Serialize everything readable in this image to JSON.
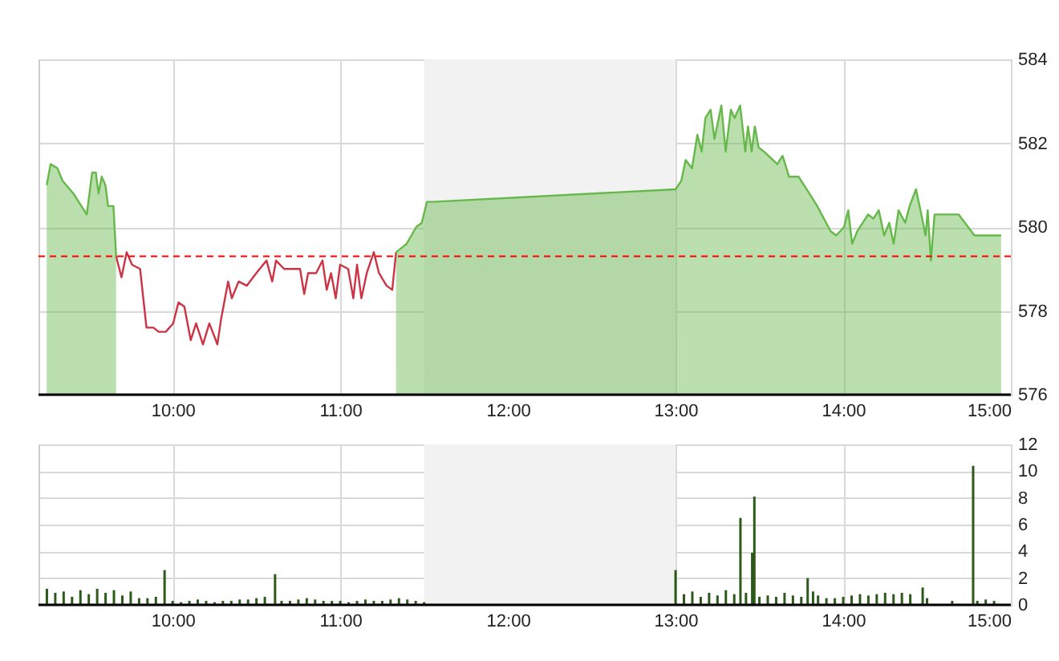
{
  "chart_data": [
    {
      "type": "area",
      "xlim": [
        9.2,
        15
      ],
      "xticks": [
        {
          "value": 10,
          "label": "10:00"
        },
        {
          "value": 11,
          "label": "11:00"
        },
        {
          "value": 12,
          "label": "12:00"
        },
        {
          "value": 13,
          "label": "13:00"
        },
        {
          "value": 14,
          "label": "14:00"
        },
        {
          "value": 15,
          "label": "15:00"
        }
      ],
      "ylim": [
        576,
        584
      ],
      "yticks": [
        576,
        578,
        580,
        582,
        584
      ],
      "grid": true,
      "bands": [
        {
          "axis": "x",
          "from": 11.5,
          "to": 13,
          "color": "#f2f2f2"
        }
      ],
      "ref_lines": [
        {
          "axis": "y",
          "value": 579.3,
          "color": "#ff0000",
          "line_style": "dashed"
        }
      ],
      "series": [
        {
          "type": "area",
          "color": "#66b84a",
          "x": [
            9.249,
            9.272,
            9.313,
            9.344,
            9.408,
            9.456,
            9.488,
            9.52,
            9.542,
            9.558,
            9.577,
            9.599,
            9.615,
            9.647,
            9.663
          ],
          "values": [
            581.0,
            581.5,
            581.4,
            581.1,
            580.8,
            580.5,
            580.3,
            581.3,
            581.3,
            580.8,
            581.2,
            581.0,
            580.5,
            580.5,
            579.3
          ]
        },
        {
          "type": "line",
          "color": "#cc3344",
          "x": [
            9.663,
            9.695,
            9.726,
            9.758,
            9.806,
            9.844,
            9.885,
            9.917,
            9.959,
            10.003,
            10.035,
            10.07,
            10.108,
            10.14,
            10.181,
            10.219,
            10.267,
            10.289,
            10.331,
            10.353,
            10.394,
            10.442,
            10.499,
            10.56,
            10.594,
            10.617,
            10.665,
            10.76,
            10.785,
            10.808,
            10.856,
            10.894,
            10.919,
            10.945,
            10.973,
            10.999,
            11.047,
            11.078,
            11.1,
            11.126,
            11.158,
            11.2,
            11.231,
            11.276,
            11.31,
            11.333
          ],
          "values": [
            579.3,
            578.8,
            579.4,
            579.1,
            579.0,
            577.6,
            577.6,
            577.5,
            577.5,
            577.7,
            578.2,
            578.1,
            577.3,
            577.7,
            577.2,
            577.7,
            577.2,
            577.8,
            578.7,
            578.3,
            578.7,
            578.6,
            578.9,
            579.2,
            578.7,
            579.2,
            579.0,
            579.0,
            578.4,
            578.9,
            578.9,
            579.2,
            578.5,
            578.9,
            578.3,
            579.1,
            579.0,
            578.3,
            579.1,
            578.3,
            578.9,
            579.4,
            578.9,
            578.6,
            578.5,
            579.4
          ]
        },
        {
          "type": "area",
          "color": "#66b84a",
          "x": [
            11.333,
            11.396,
            11.453,
            11.486,
            11.517,
            11.55,
            13.0,
            13.034,
            13.06,
            13.098,
            13.13,
            13.156,
            13.178,
            13.209,
            13.232,
            13.273,
            13.299,
            13.33,
            13.352,
            13.385,
            13.416,
            13.432,
            13.454,
            13.473,
            13.495,
            13.527,
            13.607,
            13.638,
            13.677,
            13.734,
            13.798,
            13.845,
            13.925,
            13.958,
            14.005,
            14.03,
            14.053,
            14.084,
            14.116,
            14.148,
            14.18,
            14.212,
            14.244,
            14.275,
            14.301,
            14.33,
            14.37,
            14.396,
            14.434,
            14.466,
            14.491,
            14.504,
            14.523,
            14.545,
            14.688,
            14.783,
            14.942
          ],
          "values": [
            579.4,
            579.6,
            580.0,
            580.1,
            580.6,
            580.6,
            580.9,
            581.1,
            581.6,
            581.4,
            582.2,
            581.8,
            582.6,
            582.8,
            582.1,
            582.9,
            581.8,
            582.8,
            582.6,
            582.9,
            581.8,
            582.4,
            581.8,
            582.4,
            581.9,
            581.8,
            581.5,
            581.7,
            581.2,
            581.2,
            580.8,
            580.5,
            579.9,
            579.8,
            580.0,
            580.4,
            579.6,
            579.9,
            580.1,
            580.3,
            580.2,
            580.4,
            579.8,
            580.1,
            579.6,
            580.4,
            580.1,
            580.5,
            580.9,
            580.3,
            579.8,
            580.4,
            579.2,
            580.3,
            580.3,
            579.8,
            579.8
          ]
        }
      ]
    },
    {
      "type": "bar",
      "xlim": [
        9.2,
        15
      ],
      "xticks": [
        {
          "value": 10,
          "label": "10:00"
        },
        {
          "value": 11,
          "label": "11:00"
        },
        {
          "value": 12,
          "label": "12:00"
        },
        {
          "value": 13,
          "label": "13:00"
        },
        {
          "value": 14,
          "label": "14:00"
        },
        {
          "value": 15,
          "label": "15:00"
        }
      ],
      "ylim": [
        0,
        12
      ],
      "yticks": [
        0,
        2,
        4,
        6,
        8,
        10,
        12
      ],
      "grid": true,
      "bands": [
        {
          "axis": "x",
          "from": 11.5,
          "to": 13,
          "color": "#f2f2f2"
        }
      ],
      "color": "#2d5a1b",
      "x": [
        9.25,
        9.3,
        9.35,
        9.4,
        9.45,
        9.5,
        9.55,
        9.6,
        9.65,
        9.7,
        9.75,
        9.8,
        9.85,
        9.9,
        9.952,
        10.0,
        10.05,
        10.1,
        10.15,
        10.2,
        10.25,
        10.3,
        10.35,
        10.4,
        10.45,
        10.5,
        10.55,
        10.611,
        10.65,
        10.7,
        10.75,
        10.8,
        10.85,
        10.9,
        10.95,
        11.0,
        11.05,
        11.1,
        11.15,
        11.2,
        11.25,
        11.3,
        11.35,
        11.4,
        11.45,
        11.5,
        13.0,
        13.05,
        13.1,
        13.15,
        13.2,
        13.25,
        13.3,
        13.35,
        13.387,
        13.42,
        13.457,
        13.47,
        13.5,
        13.55,
        13.6,
        13.65,
        13.7,
        13.75,
        13.788,
        13.82,
        13.85,
        13.9,
        13.95,
        14.0,
        14.05,
        14.1,
        14.15,
        14.2,
        14.25,
        14.3,
        14.35,
        14.4,
        14.474,
        14.5,
        14.65,
        14.775,
        14.8,
        14.85,
        14.9
      ],
      "values": [
        1.2,
        0.9,
        1.0,
        0.6,
        1.1,
        0.8,
        1.2,
        0.9,
        1.1,
        0.7,
        1.0,
        0.5,
        0.5,
        0.6,
        2.6,
        0.3,
        0.2,
        0.3,
        0.4,
        0.3,
        0.2,
        0.3,
        0.3,
        0.4,
        0.4,
        0.5,
        0.6,
        2.3,
        0.3,
        0.3,
        0.4,
        0.5,
        0.4,
        0.3,
        0.3,
        0.3,
        0.2,
        0.3,
        0.4,
        0.3,
        0.3,
        0.4,
        0.5,
        0.4,
        0.3,
        0.2,
        2.6,
        0.8,
        1.0,
        0.6,
        0.9,
        0.7,
        1.1,
        0.8,
        6.5,
        0.9,
        3.9,
        8.1,
        0.6,
        0.7,
        0.6,
        0.9,
        0.7,
        0.6,
        2.0,
        1.0,
        0.7,
        0.5,
        0.5,
        0.6,
        0.7,
        0.8,
        0.7,
        0.8,
        0.9,
        0.8,
        0.9,
        0.8,
        1.3,
        0.5,
        0.3,
        10.4,
        0.3,
        0.4,
        0.3
      ]
    }
  ]
}
